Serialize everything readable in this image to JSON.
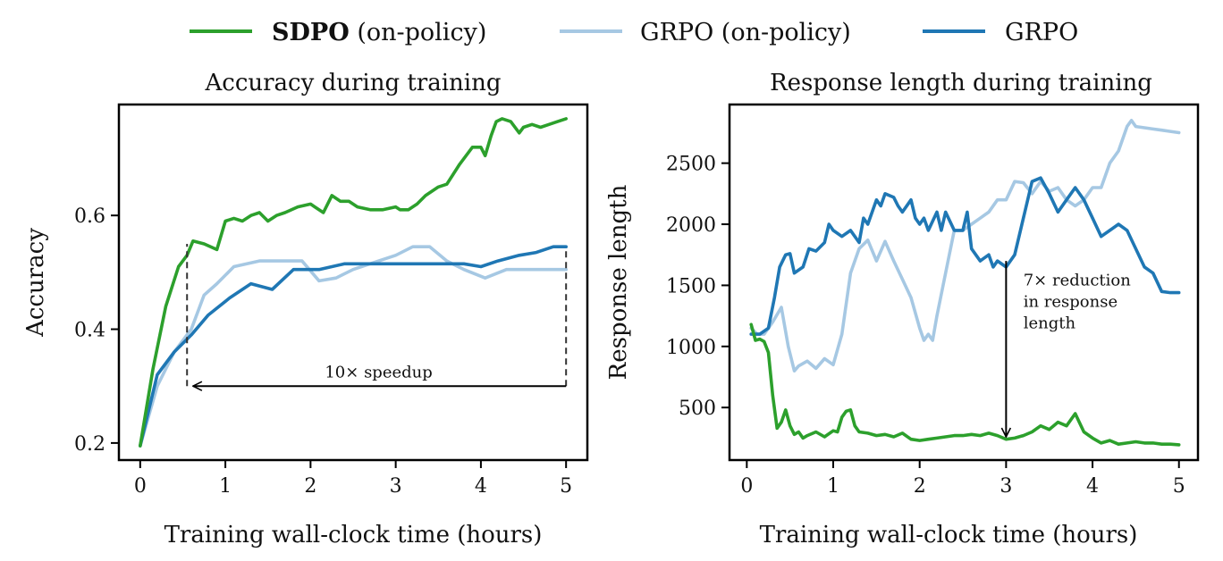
{
  "colors": {
    "sdpo": "#2ca02c",
    "grpo_on_policy": "#a6c8e3",
    "grpo": "#1f77b4",
    "axis": "#000000",
    "guide": "#333333"
  },
  "legend": [
    {
      "series": "sdpo",
      "bold_part": "SDPO",
      "rest": " (on-policy)"
    },
    {
      "series": "grpo_on_policy",
      "bold_part": "",
      "rest": "GRPO (on-policy)"
    },
    {
      "series": "grpo",
      "bold_part": "",
      "rest": "GRPO"
    }
  ],
  "chart_data": [
    {
      "type": "line",
      "title": "Accuracy during training",
      "xlabel": "Training wall-clock time (hours)",
      "ylabel": "Accuracy",
      "xlim": [
        -0.25,
        5.25
      ],
      "ylim": [
        0.17,
        0.795
      ],
      "xticks": [
        0,
        1,
        2,
        3,
        4,
        5
      ],
      "xtick_labels": [
        "0",
        "1",
        "2",
        "3",
        "4",
        "5"
      ],
      "yticks": [
        0.2,
        0.4,
        0.6
      ],
      "ytick_labels": [
        "0.2",
        "0.4",
        "0.6"
      ],
      "series": [
        {
          "key": "grpo_on_policy",
          "name": "GRPO (on-policy)",
          "x": [
            0,
            0.2,
            0.4,
            0.6,
            0.75,
            0.9,
            1.1,
            1.4,
            1.6,
            1.9,
            2.1,
            2.3,
            2.5,
            2.8,
            3.0,
            3.2,
            3.4,
            3.6,
            3.8,
            4.05,
            4.3,
            4.6,
            4.8,
            5.0
          ],
          "y": [
            0.195,
            0.3,
            0.36,
            0.4,
            0.46,
            0.48,
            0.51,
            0.52,
            0.52,
            0.52,
            0.485,
            0.49,
            0.505,
            0.52,
            0.53,
            0.545,
            0.545,
            0.52,
            0.505,
            0.49,
            0.505,
            0.505,
            0.505,
            0.505
          ]
        },
        {
          "key": "grpo",
          "name": "GRPO",
          "x": [
            0,
            0.2,
            0.4,
            0.6,
            0.8,
            1.05,
            1.3,
            1.55,
            1.8,
            2.1,
            2.4,
            2.7,
            3.0,
            3.2,
            3.4,
            3.6,
            3.8,
            4.0,
            4.2,
            4.45,
            4.65,
            4.85,
            5.0
          ],
          "y": [
            0.195,
            0.32,
            0.36,
            0.39,
            0.425,
            0.455,
            0.48,
            0.47,
            0.505,
            0.505,
            0.515,
            0.515,
            0.515,
            0.515,
            0.515,
            0.515,
            0.515,
            0.51,
            0.52,
            0.53,
            0.535,
            0.545,
            0.545
          ]
        },
        {
          "key": "sdpo",
          "name": "SDPO (on-policy)",
          "x": [
            0,
            0.15,
            0.3,
            0.45,
            0.55,
            0.62,
            0.75,
            0.9,
            1.0,
            1.1,
            1.2,
            1.3,
            1.4,
            1.5,
            1.6,
            1.7,
            1.85,
            2.0,
            2.05,
            2.15,
            2.25,
            2.35,
            2.45,
            2.55,
            2.7,
            2.85,
            3.0,
            3.05,
            3.15,
            3.25,
            3.35,
            3.5,
            3.6,
            3.75,
            3.9,
            4.0,
            4.05,
            4.12,
            4.18,
            4.25,
            4.35,
            4.45,
            4.5,
            4.6,
            4.7,
            4.8,
            4.9,
            5.0
          ],
          "y": [
            0.195,
            0.33,
            0.44,
            0.51,
            0.53,
            0.555,
            0.55,
            0.54,
            0.59,
            0.595,
            0.59,
            0.6,
            0.605,
            0.59,
            0.6,
            0.605,
            0.615,
            0.62,
            0.615,
            0.605,
            0.635,
            0.625,
            0.625,
            0.615,
            0.61,
            0.61,
            0.615,
            0.61,
            0.61,
            0.62,
            0.635,
            0.65,
            0.655,
            0.69,
            0.72,
            0.72,
            0.705,
            0.74,
            0.765,
            0.77,
            0.765,
            0.745,
            0.755,
            0.76,
            0.755,
            0.76,
            0.765,
            0.77
          ]
        }
      ],
      "annotations": [
        {
          "kind": "vline",
          "x": 0.55,
          "y_from": 0.3,
          "y_to": 0.55
        },
        {
          "kind": "vline",
          "x": 5.0,
          "y_from": 0.3,
          "y_to": 0.545
        },
        {
          "kind": "arrow",
          "x_from": 5.0,
          "x_to": 0.62,
          "y": 0.3
        },
        {
          "kind": "text",
          "lines": [
            "10× speedup"
          ],
          "x": 2.8,
          "y": 0.315,
          "anchor": "middle"
        }
      ]
    },
    {
      "type": "line",
      "title": "Response length during training",
      "xlabel": "Training wall-clock time (hours)",
      "ylabel": "Response length",
      "xlim": [
        -0.2,
        5.22
      ],
      "ylim": [
        70,
        2980
      ],
      "xticks": [
        0,
        1,
        2,
        3,
        4,
        5
      ],
      "xtick_labels": [
        "0",
        "1",
        "2",
        "3",
        "4",
        "5"
      ],
      "yticks": [
        500,
        1000,
        1500,
        2000,
        2500
      ],
      "ytick_labels": [
        "500",
        "1000",
        "1500",
        "2000",
        "2500"
      ],
      "series": [
        {
          "key": "grpo_on_policy",
          "name": "GRPO (on-policy)",
          "x": [
            0.05,
            0.12,
            0.2,
            0.3,
            0.4,
            0.48,
            0.55,
            0.6,
            0.7,
            0.8,
            0.9,
            1.0,
            1.1,
            1.2,
            1.3,
            1.4,
            1.5,
            1.6,
            1.7,
            1.8,
            1.9,
            2.0,
            2.05,
            2.1,
            2.15,
            2.2,
            2.3,
            2.4,
            2.5,
            2.6,
            2.7,
            2.8,
            2.9,
            3.0,
            3.1,
            3.2,
            3.3,
            3.4,
            3.5,
            3.6,
            3.7,
            3.8,
            3.9,
            4.0,
            4.1,
            4.2,
            4.3,
            4.4,
            4.45,
            4.5,
            4.6,
            4.7,
            4.8,
            4.9,
            5.0
          ],
          "y": [
            1150,
            1100,
            1100,
            1200,
            1320,
            1000,
            800,
            840,
            880,
            820,
            900,
            850,
            1100,
            1600,
            1800,
            1870,
            1700,
            1860,
            1700,
            1550,
            1400,
            1150,
            1050,
            1100,
            1050,
            1250,
            1600,
            1950,
            1950,
            2000,
            2050,
            2100,
            2200,
            2200,
            2350,
            2340,
            2250,
            2350,
            2270,
            2300,
            2200,
            2150,
            2200,
            2300,
            2300,
            2500,
            2600,
            2800,
            2850,
            2800,
            2790,
            2780,
            2770,
            2760,
            2750
          ]
        },
        {
          "key": "grpo",
          "name": "GRPO",
          "x": [
            0.05,
            0.15,
            0.25,
            0.32,
            0.38,
            0.45,
            0.5,
            0.55,
            0.65,
            0.72,
            0.8,
            0.9,
            0.95,
            1.0,
            1.1,
            1.2,
            1.3,
            1.35,
            1.4,
            1.5,
            1.55,
            1.6,
            1.7,
            1.75,
            1.8,
            1.9,
            1.95,
            2.0,
            2.05,
            2.1,
            2.2,
            2.25,
            2.3,
            2.4,
            2.5,
            2.55,
            2.6,
            2.7,
            2.8,
            2.85,
            2.9,
            3.0,
            3.1,
            3.2,
            3.3,
            3.4,
            3.5,
            3.6,
            3.7,
            3.8,
            3.9,
            4.0,
            4.1,
            4.2,
            4.3,
            4.4,
            4.5,
            4.6,
            4.7,
            4.8,
            4.9,
            5.0
          ],
          "y": [
            1100,
            1100,
            1150,
            1400,
            1650,
            1750,
            1760,
            1600,
            1650,
            1800,
            1780,
            1850,
            2000,
            1950,
            1900,
            1950,
            1850,
            2050,
            2000,
            2200,
            2150,
            2250,
            2220,
            2150,
            2100,
            2200,
            2050,
            2000,
            2050,
            1950,
            2100,
            1950,
            2100,
            1950,
            1950,
            2100,
            1800,
            1700,
            1750,
            1650,
            1700,
            1650,
            1750,
            2050,
            2350,
            2380,
            2250,
            2100,
            2200,
            2300,
            2200,
            2050,
            1900,
            1950,
            2000,
            1950,
            1800,
            1650,
            1600,
            1450,
            1440,
            1440
          ]
        },
        {
          "key": "sdpo",
          "name": "SDPO (on-policy)",
          "x": [
            0.05,
            0.1,
            0.15,
            0.2,
            0.25,
            0.3,
            0.35,
            0.4,
            0.45,
            0.5,
            0.55,
            0.6,
            0.65,
            0.7,
            0.8,
            0.9,
            1.0,
            1.05,
            1.1,
            1.15,
            1.2,
            1.25,
            1.3,
            1.4,
            1.5,
            1.6,
            1.7,
            1.8,
            1.9,
            2.0,
            2.1,
            2.2,
            2.3,
            2.4,
            2.5,
            2.6,
            2.7,
            2.8,
            2.9,
            3.0,
            3.1,
            3.2,
            3.3,
            3.4,
            3.5,
            3.6,
            3.7,
            3.8,
            3.9,
            4.0,
            4.1,
            4.2,
            4.3,
            4.4,
            4.5,
            4.6,
            4.7,
            4.8,
            4.9,
            5.0
          ],
          "y": [
            1180,
            1050,
            1060,
            1040,
            950,
            600,
            330,
            380,
            480,
            350,
            280,
            300,
            250,
            270,
            300,
            260,
            310,
            300,
            420,
            470,
            480,
            350,
            300,
            290,
            270,
            280,
            260,
            290,
            240,
            230,
            240,
            250,
            260,
            270,
            270,
            280,
            270,
            290,
            270,
            240,
            250,
            270,
            300,
            350,
            320,
            380,
            350,
            450,
            300,
            250,
            210,
            230,
            200,
            210,
            220,
            210,
            210,
            200,
            200,
            195
          ]
        }
      ],
      "annotations": [
        {
          "kind": "arrow",
          "x_from": 3.0,
          "x_to": 3.0,
          "y_from": 1700,
          "y_to": 260
        },
        {
          "kind": "text",
          "lines": [
            "7× reduction",
            "in response",
            "length"
          ],
          "x": 3.2,
          "y": 1500,
          "anchor": "start"
        }
      ]
    }
  ]
}
